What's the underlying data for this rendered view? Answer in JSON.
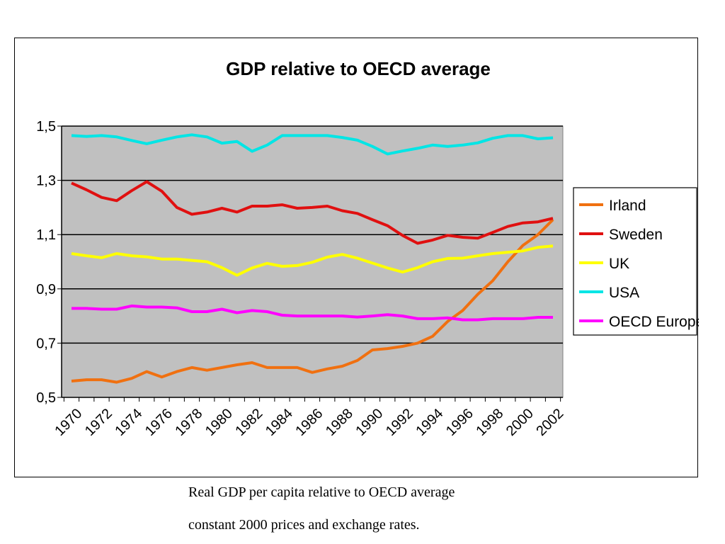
{
  "caption": {
    "line1": "Real GDP per capita relative to OECD average",
    "line2": "constant 2000 prices and exchange rates."
  },
  "chart_data": {
    "type": "line",
    "title": "GDP relative to OECD average",
    "xlabel": "",
    "ylabel": "",
    "ylim": [
      0.5,
      1.5
    ],
    "yticks": [
      "0,5",
      "0,7",
      "0,9",
      "1,1",
      "1,3",
      "1,5"
    ],
    "ytick_values": [
      0.5,
      0.7,
      0.9,
      1.1,
      1.3,
      1.5
    ],
    "xticks": [
      "1970",
      "1972",
      "1974",
      "1976",
      "1978",
      "1980",
      "1982",
      "1984",
      "1986",
      "1988",
      "1990",
      "1992",
      "1994",
      "1996",
      "1998",
      "2000",
      "2002"
    ],
    "x": [
      1970,
      1971,
      1972,
      1973,
      1974,
      1975,
      1976,
      1977,
      1978,
      1979,
      1980,
      1981,
      1982,
      1983,
      1984,
      1985,
      1986,
      1987,
      1988,
      1989,
      1990,
      1991,
      1992,
      1993,
      1994,
      1995,
      1996,
      1997,
      1998,
      1999,
      2000,
      2001,
      2002
    ],
    "grid": true,
    "plot_background": "#c0c0c0",
    "legend_position": "right",
    "series": [
      {
        "name": "Irland",
        "color": "#f07010",
        "values": [
          0.56,
          0.565,
          0.565,
          0.556,
          0.57,
          0.595,
          0.575,
          0.595,
          0.61,
          0.6,
          0.61,
          0.62,
          0.628,
          0.61,
          0.61,
          0.61,
          0.592,
          0.605,
          0.615,
          0.636,
          0.675,
          0.68,
          0.688,
          0.7,
          0.725,
          0.78,
          0.82,
          0.88,
          0.93,
          1.0,
          1.06,
          1.1,
          1.155
        ]
      },
      {
        "name": "Sweden",
        "color": "#e01010",
        "values": [
          1.29,
          1.265,
          1.237,
          1.225,
          1.262,
          1.295,
          1.26,
          1.2,
          1.175,
          1.183,
          1.197,
          1.183,
          1.205,
          1.205,
          1.21,
          1.197,
          1.2,
          1.205,
          1.188,
          1.178,
          1.155,
          1.133,
          1.097,
          1.068,
          1.08,
          1.097,
          1.09,
          1.087,
          1.108,
          1.13,
          1.143,
          1.147,
          1.16
        ]
      },
      {
        "name": "UK",
        "color": "#ffff00",
        "values": [
          1.03,
          1.022,
          1.015,
          1.03,
          1.022,
          1.018,
          1.01,
          1.01,
          1.005,
          1.0,
          0.978,
          0.95,
          0.977,
          0.994,
          0.983,
          0.986,
          0.998,
          1.017,
          1.027,
          1.013,
          0.995,
          0.977,
          0.962,
          0.978,
          1.0,
          1.012,
          1.013,
          1.022,
          1.03,
          1.035,
          1.04,
          1.053,
          1.058
        ]
      },
      {
        "name": "USA",
        "color": "#00e5e5",
        "values": [
          1.465,
          1.462,
          1.465,
          1.46,
          1.447,
          1.435,
          1.448,
          1.46,
          1.468,
          1.46,
          1.437,
          1.443,
          1.407,
          1.43,
          1.465,
          1.465,
          1.465,
          1.465,
          1.458,
          1.448,
          1.425,
          1.397,
          1.408,
          1.418,
          1.43,
          1.425,
          1.43,
          1.438,
          1.455,
          1.465,
          1.465,
          1.453,
          1.457
        ]
      },
      {
        "name": "OECD Europe",
        "color": "#ff00ff",
        "values": [
          0.828,
          0.828,
          0.825,
          0.825,
          0.837,
          0.833,
          0.833,
          0.83,
          0.816,
          0.816,
          0.825,
          0.812,
          0.82,
          0.816,
          0.803,
          0.8,
          0.8,
          0.8,
          0.8,
          0.796,
          0.8,
          0.805,
          0.8,
          0.79,
          0.79,
          0.793,
          0.786,
          0.786,
          0.79,
          0.79,
          0.79,
          0.795,
          0.795
        ]
      }
    ]
  }
}
